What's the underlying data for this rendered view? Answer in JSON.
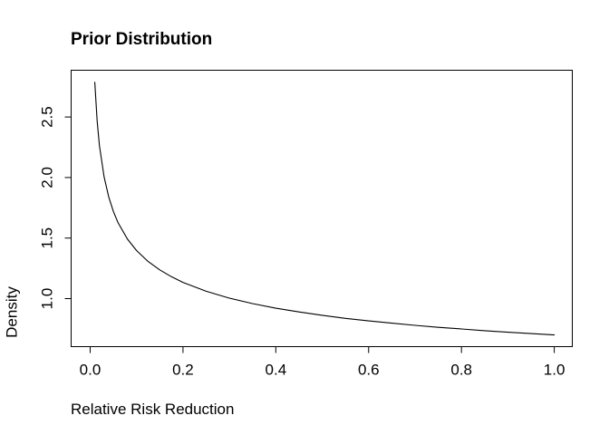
{
  "chart_data": {
    "type": "line",
    "title": "Prior Distribution",
    "xlabel": "Relative Risk Reduction",
    "ylabel": "Density",
    "x": [
      0.01,
      0.015,
      0.02,
      0.03,
      0.04,
      0.05,
      0.06,
      0.08,
      0.1,
      0.125,
      0.15,
      0.175,
      0.2,
      0.25,
      0.3,
      0.35,
      0.4,
      0.45,
      0.5,
      0.55,
      0.6,
      0.65,
      0.7,
      0.75,
      0.8,
      0.85,
      0.9,
      0.95,
      1.0
    ],
    "y": [
      2.787,
      2.468,
      2.264,
      2.004,
      1.839,
      1.72,
      1.628,
      1.493,
      1.397,
      1.306,
      1.237,
      1.181,
      1.134,
      1.061,
      1.004,
      0.959,
      0.921,
      0.89,
      0.862,
      0.837,
      0.816,
      0.797,
      0.779,
      0.763,
      0.749,
      0.735,
      0.722,
      0.711,
      0.7
    ],
    "xtick_labels": [
      "0.0",
      "0.2",
      "0.4",
      "0.6",
      "0.8",
      "1.0"
    ],
    "ytick_labels": [
      "1.0",
      "1.5",
      "2.0",
      "2.5"
    ],
    "xlim": [
      -0.031,
      1.04
    ],
    "ylim": [
      0.607,
      2.884
    ],
    "grid": false,
    "legend": "none",
    "line_color": "#000000",
    "axis_color": "#000000",
    "text_color": "#000000",
    "background_color": "#ffffff"
  }
}
